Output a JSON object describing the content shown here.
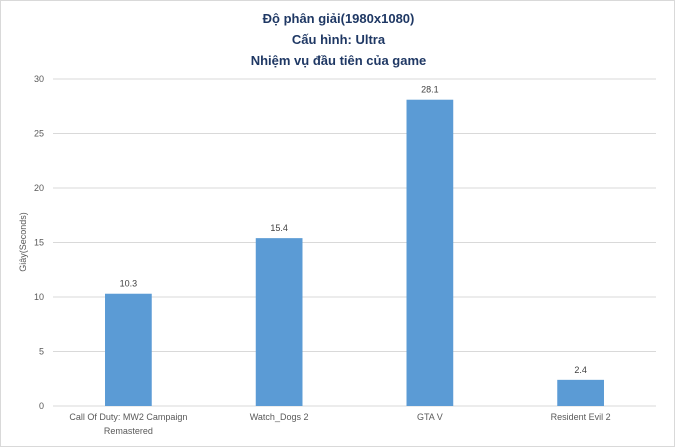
{
  "chart_data": {
    "type": "bar",
    "title": [
      "Độ phân giải(1980x1080)",
      "Cấu hình: Ultra",
      "Nhiệm vụ đầu tiên của game"
    ],
    "categories": [
      [
        "Call Of Duty: MW2 Campaign",
        "Remastered"
      ],
      [
        "Watch_Dogs 2"
      ],
      [
        "GTA V"
      ],
      [
        "Resident Evil 2"
      ]
    ],
    "values": [
      10.3,
      15.4,
      28.1,
      2.4
    ],
    "data_labels": [
      "10.3",
      "15.4",
      "28.1",
      "2.4"
    ],
    "ylabel": "Giây(Seconds)",
    "xlabel": "",
    "ylim": [
      0,
      30
    ],
    "yticks": [
      0,
      5,
      10,
      15,
      20,
      25,
      30
    ],
    "grid": true,
    "legend": "none",
    "bar_color": "#5b9bd5",
    "title_color": "#1f3864"
  }
}
